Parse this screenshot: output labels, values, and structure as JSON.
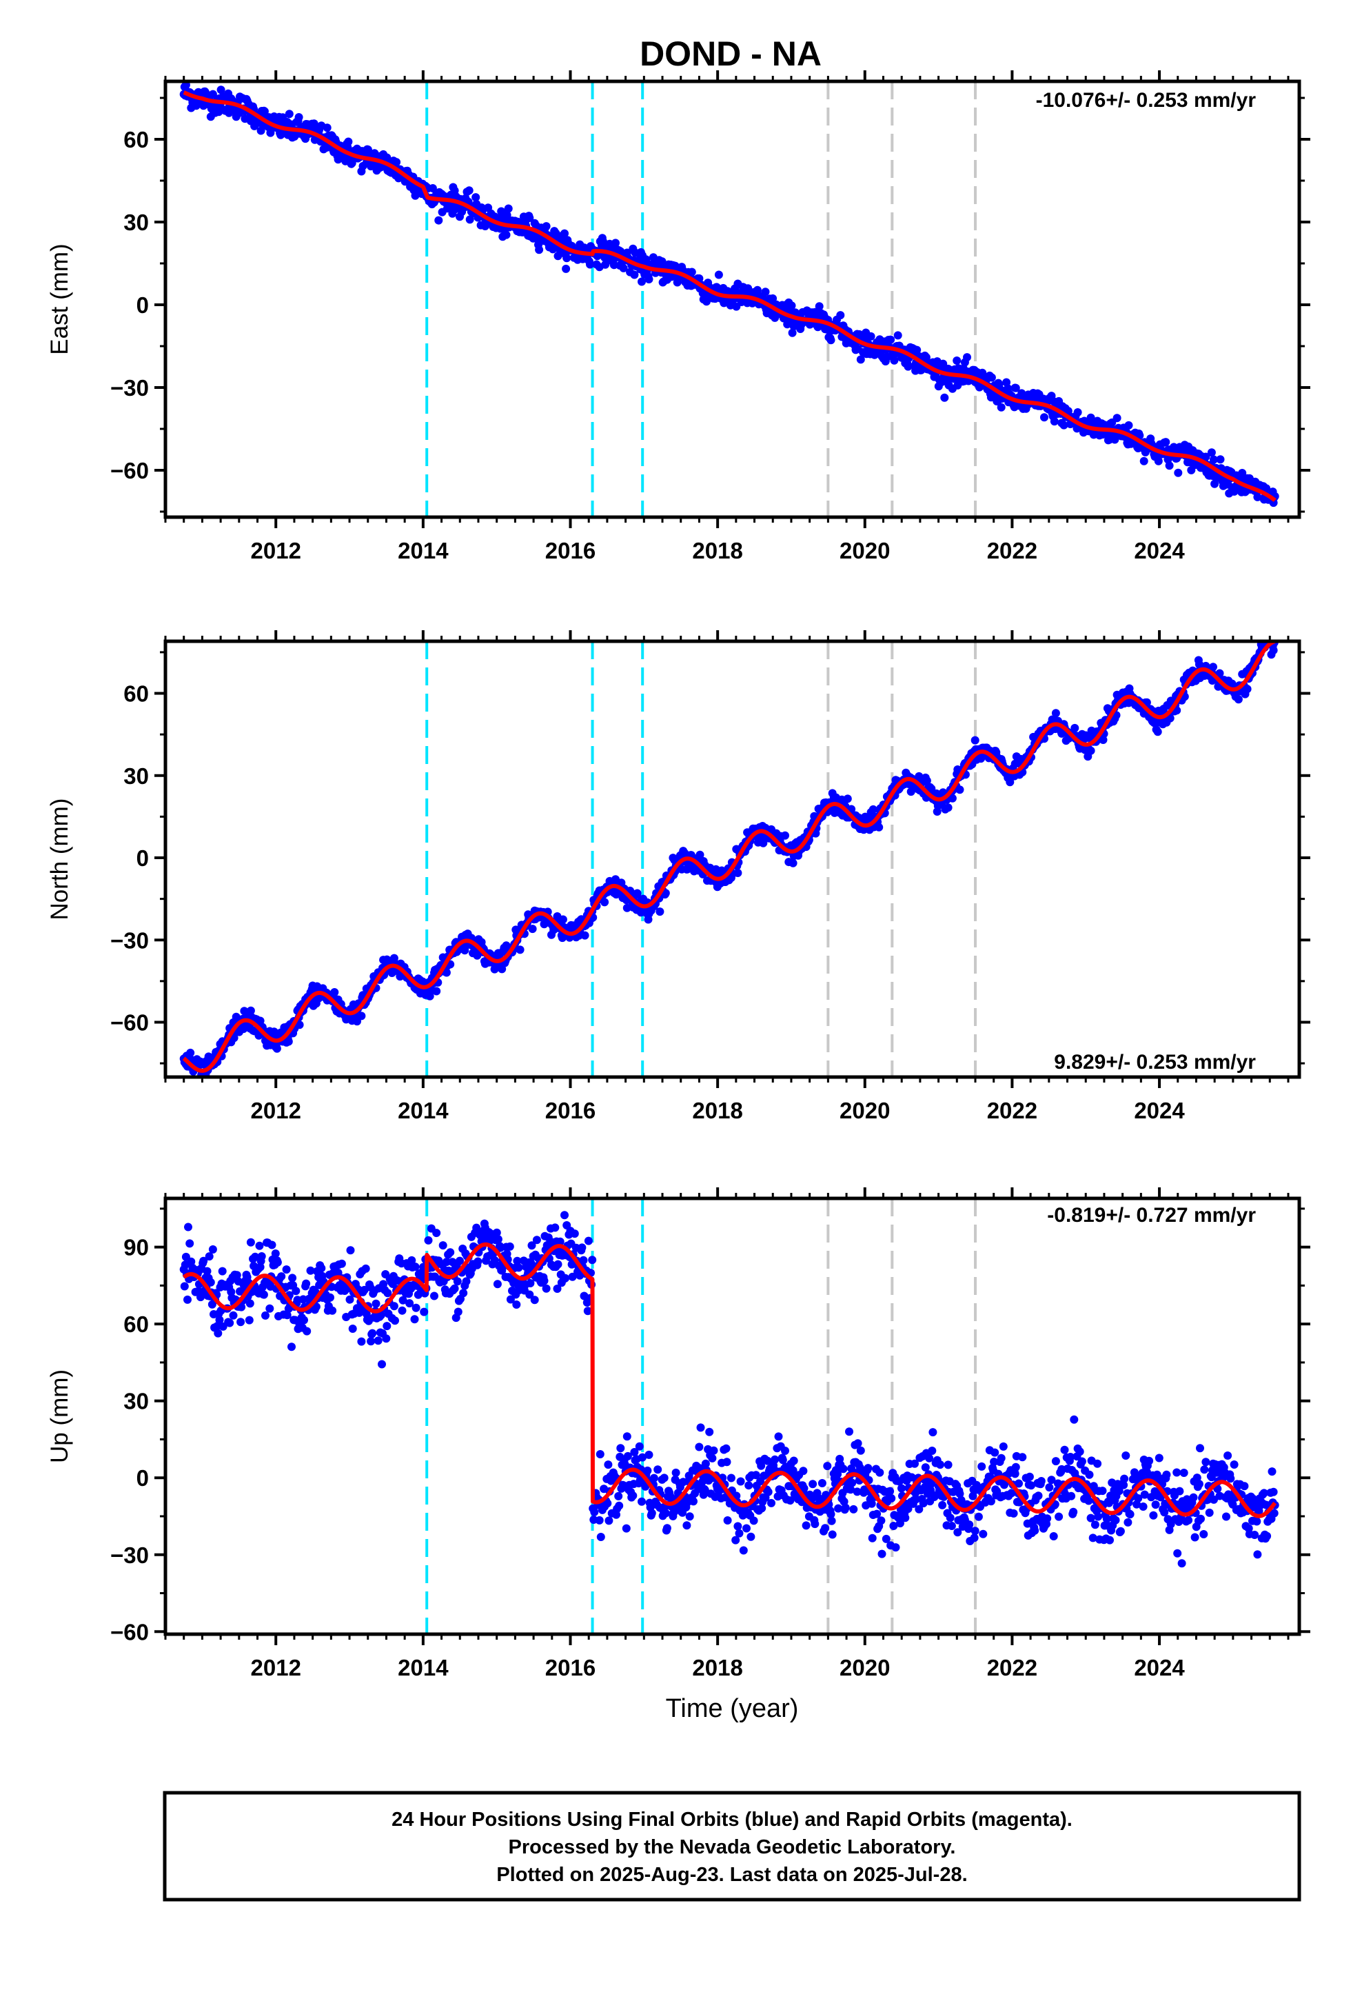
{
  "chart_data": [
    {
      "type": "scatter",
      "title": "DOND - NA",
      "xlabel": "",
      "ylabel": "East (mm)",
      "xlim": [
        2010.5,
        2025.9
      ],
      "ylim": [
        -77,
        81
      ],
      "xticks": [
        "2012",
        "2014",
        "2016",
        "2018",
        "2020",
        "2022",
        "2024"
      ],
      "yticks": [
        "60",
        "30",
        "0",
        "−30",
        "−60"
      ],
      "rate_label": "-10.076+/- 0.253 mm/yr",
      "rate_position": "top-right",
      "grid": false,
      "equipment_change_lines": [
        2014.05,
        2016.3,
        2016.98
      ],
      "unknown_event_lines": [
        2019.5,
        2020.37,
        2021.5
      ],
      "data_start": 2010.75,
      "data_end": 2025.57,
      "trend_knots": [
        [
          2010.75,
          77
        ],
        [
          2011.0,
          76
        ],
        [
          2012.0,
          66
        ],
        [
          2013.0,
          56
        ],
        [
          2014.0,
          44
        ],
        [
          2014.06,
          40
        ],
        [
          2015.0,
          31
        ],
        [
          2016.0,
          21
        ],
        [
          2016.3,
          18
        ],
        [
          2016.31,
          19
        ],
        [
          2017.0,
          15
        ],
        [
          2018.0,
          5
        ],
        [
          2019.0,
          -3
        ],
        [
          2020.0,
          -13
        ],
        [
          2021.0,
          -23
        ],
        [
          2022.0,
          -33
        ],
        [
          2023.0,
          -43
        ],
        [
          2024.0,
          -52
        ],
        [
          2025.0,
          -62
        ],
        [
          2025.57,
          -72
        ]
      ],
      "annual_amplitude": 1.2,
      "scatter_noise": 2.2
    },
    {
      "type": "scatter",
      "title": "",
      "xlabel": "",
      "ylabel": "North (mm)",
      "xlim": [
        2010.5,
        2025.9
      ],
      "ylim": [
        -80,
        79
      ],
      "xticks": [
        "2012",
        "2014",
        "2016",
        "2018",
        "2020",
        "2022",
        "2024"
      ],
      "yticks": [
        "60",
        "30",
        "0",
        "−30",
        "−60"
      ],
      "rate_label": "9.829+/- 0.253 mm/yr",
      "rate_position": "bottom-right",
      "grid": false,
      "equipment_change_lines": [
        2014.05,
        2016.3,
        2016.98
      ],
      "unknown_event_lines": [
        2019.5,
        2020.37,
        2021.5
      ],
      "data_start": 2010.75,
      "data_end": 2025.57,
      "trend_knots": [
        [
          2010.75,
          -75
        ],
        [
          2011.5,
          -66
        ],
        [
          2012.5,
          -56
        ],
        [
          2013.5,
          -46
        ],
        [
          2014.5,
          -37
        ],
        [
          2015.5,
          -27
        ],
        [
          2016.5,
          -17
        ],
        [
          2017.5,
          -7
        ],
        [
          2018.5,
          3
        ],
        [
          2019.5,
          13
        ],
        [
          2020.5,
          22
        ],
        [
          2021.5,
          32
        ],
        [
          2022.5,
          42
        ],
        [
          2023.5,
          52
        ],
        [
          2024.5,
          62
        ],
        [
          2025.57,
          73
        ]
      ],
      "annual_amplitude": 6.0,
      "annual_phase_peak": 0.55,
      "scatter_noise": 1.8
    },
    {
      "type": "scatter",
      "title": "",
      "xlabel": "Time (year)",
      "ylabel": "Up (mm)",
      "xlim": [
        2010.5,
        2025.9
      ],
      "ylim": [
        -61,
        109
      ],
      "xticks": [
        "2012",
        "2014",
        "2016",
        "2018",
        "2020",
        "2022",
        "2024"
      ],
      "yticks": [
        "90",
        "60",
        "30",
        "0",
        "−30",
        "−60"
      ],
      "rate_label": "-0.819+/- 0.727 mm/yr",
      "rate_position": "top-right",
      "grid": false,
      "equipment_change_lines": [
        2014.05,
        2016.3,
        2016.98
      ],
      "unknown_event_lines": [
        2019.5,
        2020.37,
        2021.5
      ],
      "data_start": 2010.75,
      "data_end": 2025.57,
      "offsets": [
        [
          2010.75,
          73
        ],
        [
          2014.05,
          85
        ],
        [
          2016.3,
          -3
        ]
      ],
      "segment_slope": -0.6,
      "annual_amplitude": 6.5,
      "annual_phase_peak": 0.85,
      "scatter_noise": 6.5
    }
  ],
  "series_colors": {
    "final_orbits": "#0000ff",
    "rapid_orbits": "#ff00ff",
    "model": "#ff0000",
    "equipment_line": "#00e5ff",
    "event_line": "#c8c8c8"
  },
  "footer": {
    "line1": "24 Hour Positions Using Final Orbits (blue) and Rapid Orbits (magenta).",
    "line2": "Processed by the Nevada Geodetic Laboratory.",
    "line3": "Plotted on 2025-Aug-23. Last data on 2025-Jul-28."
  }
}
